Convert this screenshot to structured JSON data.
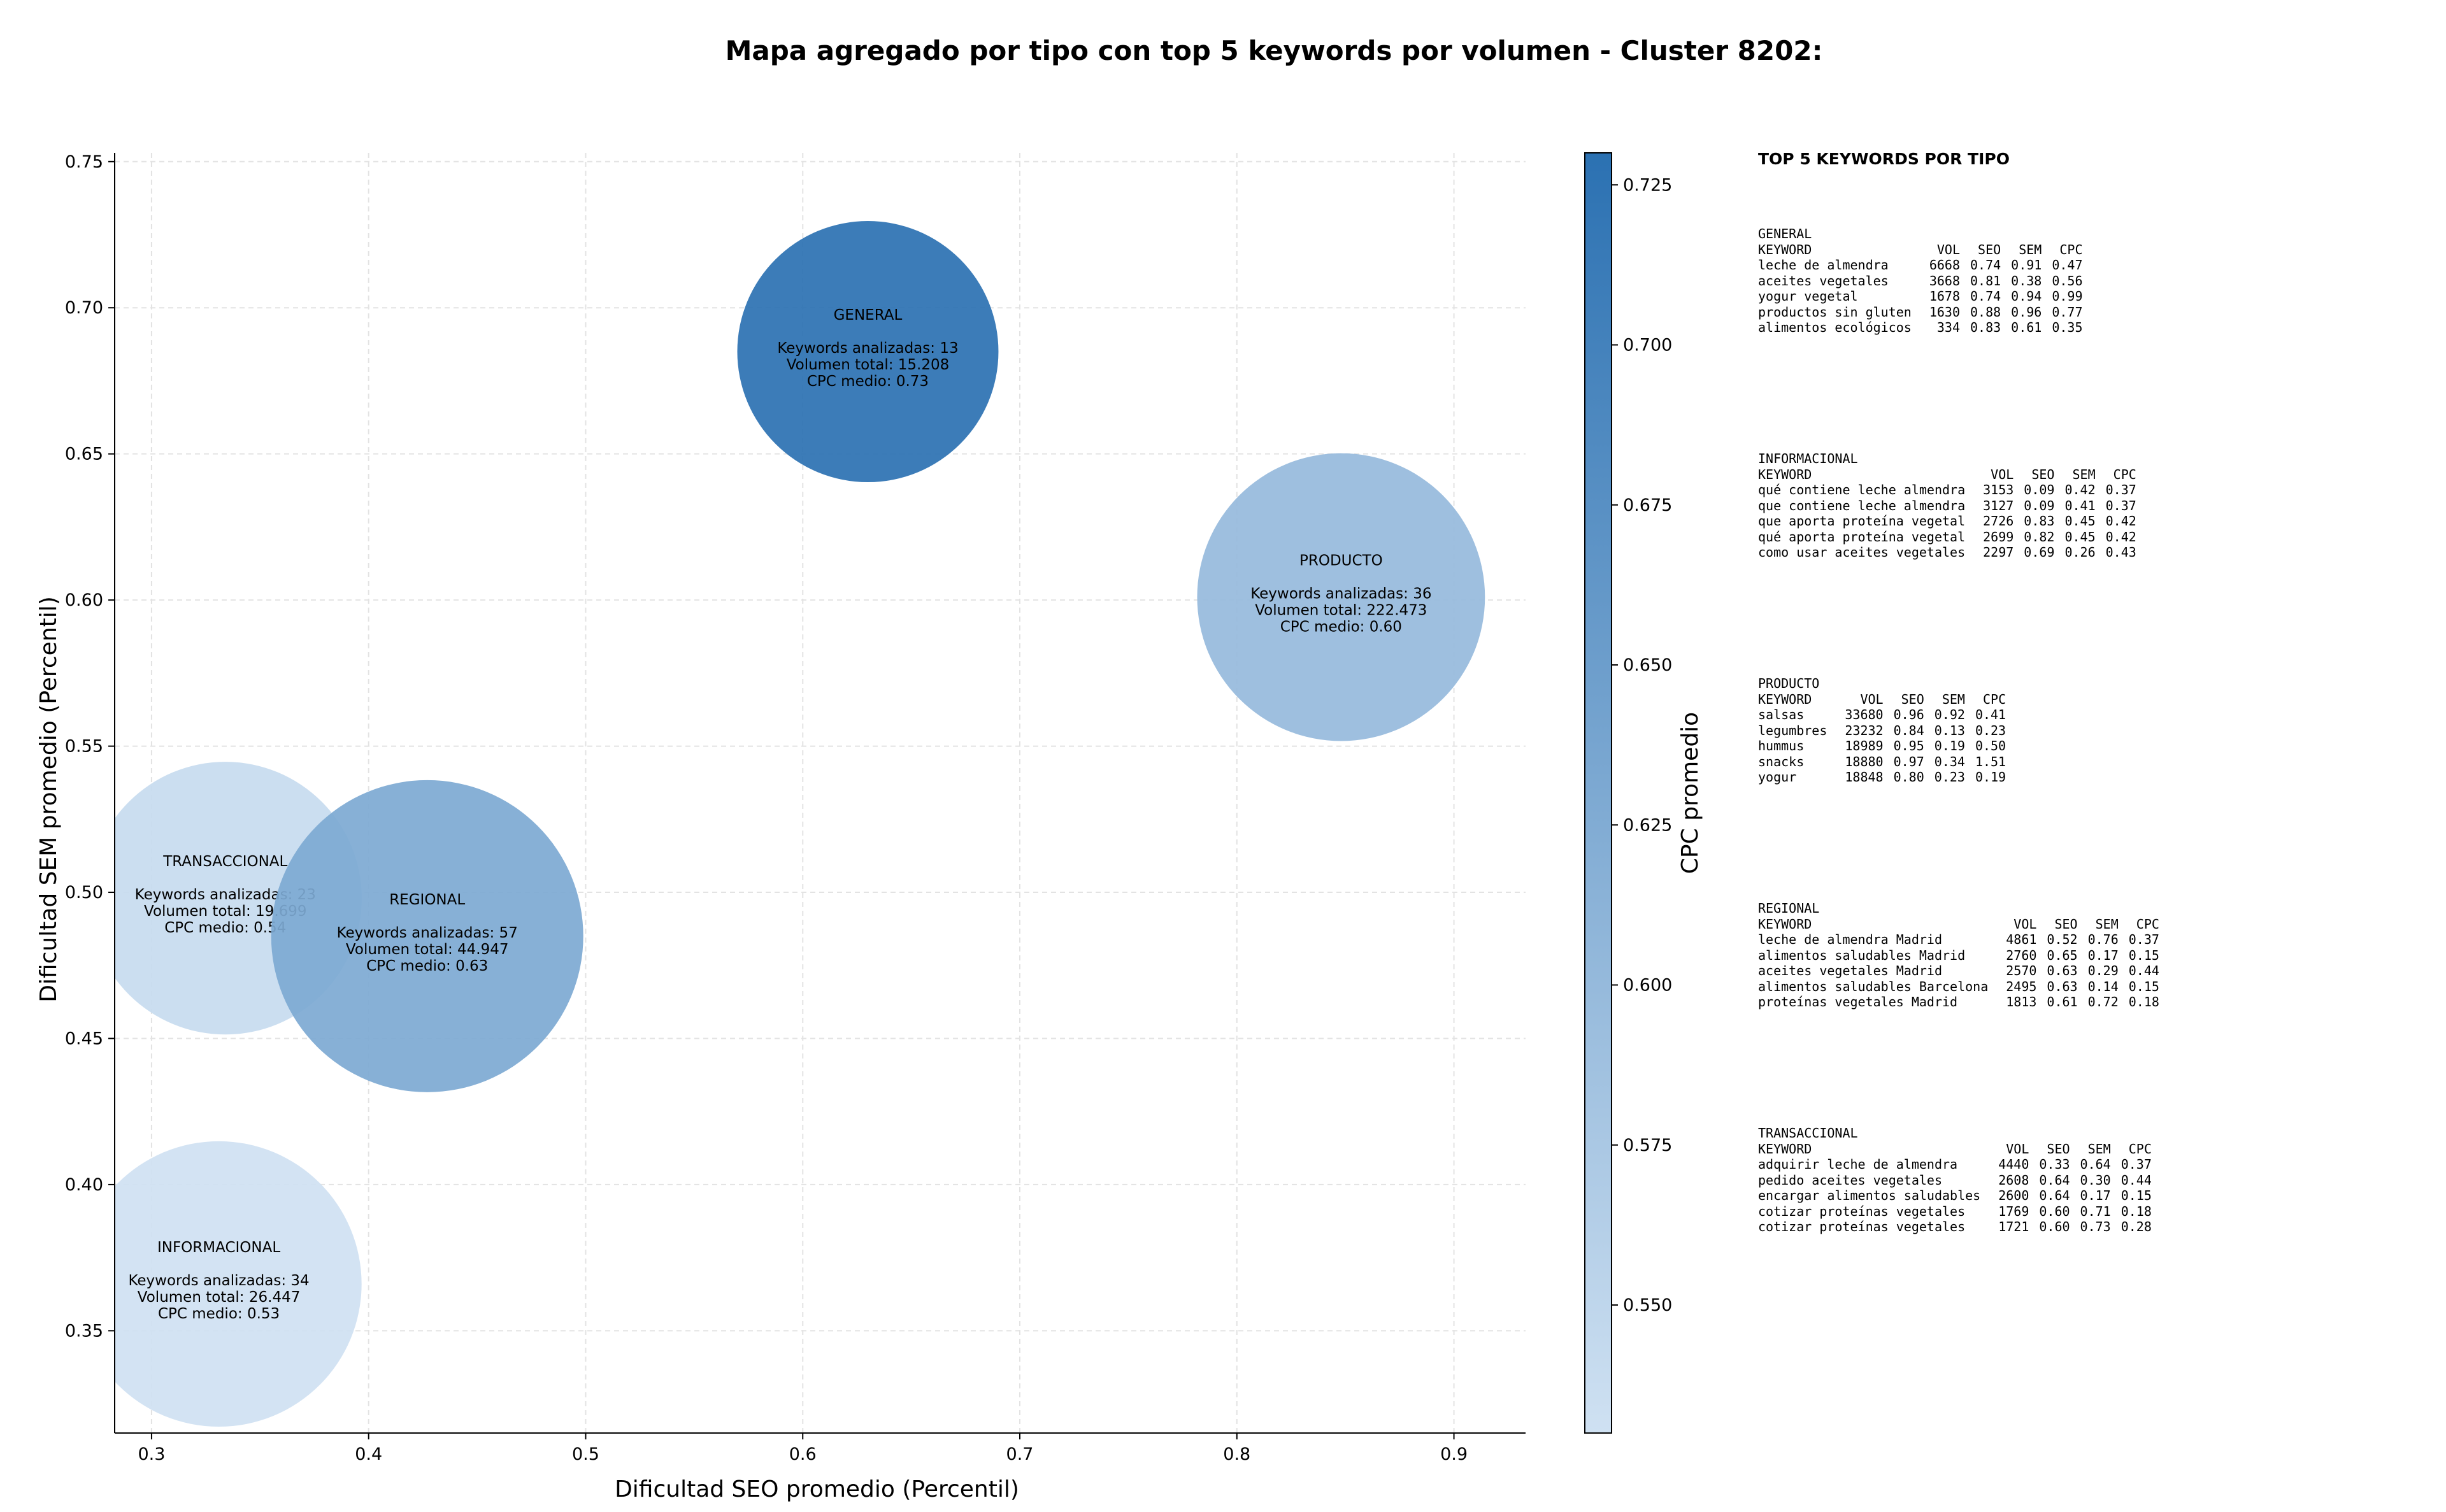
{
  "chart_data": {
    "type": "scatter",
    "title": "Mapa agregado por tipo con top 5 keywords por volumen - Cluster 8202:",
    "xlabel": "Dificultad SEO promedio (Percentil)",
    "ylabel": "Dificultad SEM promedio (Percentil)",
    "xlim": [
      0.283,
      0.933
    ],
    "ylim": [
      0.315,
      0.753
    ],
    "xticks": [
      0.3,
      0.4,
      0.5,
      0.6,
      0.7,
      0.8,
      0.9
    ],
    "yticks": [
      0.35,
      0.4,
      0.45,
      0.5,
      0.55,
      0.6,
      0.65,
      0.7,
      0.75
    ],
    "grid": true,
    "colorbar": {
      "label": "CPC promedio",
      "range": [
        0.53,
        0.73
      ],
      "ticks": [
        0.55,
        0.575,
        0.6,
        0.625,
        0.65,
        0.675,
        0.7,
        0.725
      ],
      "color_low": "#cfe1f2",
      "color_high": "#2b71b2"
    },
    "points": [
      {
        "name": "GENERAL",
        "x": 0.63,
        "y": 0.685,
        "keywords": 13,
        "volume": "15.208",
        "cpc": 0.73,
        "line1": "Keywords analizadas: 13",
        "line2": "Volumen total: 15.208",
        "line3": "CPC medio: 0.73"
      },
      {
        "name": "PRODUCTO",
        "x": 0.848,
        "y": 0.601,
        "keywords": 36,
        "volume": "222.473",
        "cpc": 0.6,
        "line1": "Keywords analizadas: 36",
        "line2": "Volumen total: 222.473",
        "line3": "CPC medio: 0.60"
      },
      {
        "name": "TRANSACCIONAL",
        "x": 0.334,
        "y": 0.498,
        "keywords": 23,
        "volume": "19.699",
        "cpc": 0.54,
        "line1": "Keywords analizadas: 23",
        "line2": "Volumen total: 19.699",
        "line3": "CPC medio: 0.54"
      },
      {
        "name": "REGIONAL",
        "x": 0.427,
        "y": 0.485,
        "keywords": 57,
        "volume": "44.947",
        "cpc": 0.63,
        "line1": "Keywords analizadas: 57",
        "line2": "Volumen total: 44.947",
        "line3": "CPC medio: 0.63"
      },
      {
        "name": "INFORMACIONAL",
        "x": 0.331,
        "y": 0.366,
        "keywords": 34,
        "volume": "26.447",
        "cpc": 0.53,
        "line1": "Keywords analizadas: 34",
        "line2": "Volumen total: 26.447",
        "line3": "CPC medio: 0.53"
      }
    ]
  },
  "keywords_panel": {
    "title": "TOP 5 KEYWORDS POR TIPO",
    "headers": [
      "KEYWORD",
      "VOL",
      "SEO",
      "SEM",
      "CPC"
    ],
    "groups": [
      {
        "name": "GENERAL",
        "rows": [
          [
            "leche de almendra",
            "6668",
            "0.74",
            "0.91",
            "0.47"
          ],
          [
            "aceites vegetales",
            "3668",
            "0.81",
            "0.38",
            "0.56"
          ],
          [
            "yogur vegetal",
            "1678",
            "0.74",
            "0.94",
            "0.99"
          ],
          [
            "productos sin gluten",
            "1630",
            "0.88",
            "0.96",
            "0.77"
          ],
          [
            "alimentos ecológicos",
            "334",
            "0.83",
            "0.61",
            "0.35"
          ]
        ]
      },
      {
        "name": "INFORMACIONAL",
        "rows": [
          [
            "qué contiene leche almendra",
            "3153",
            "0.09",
            "0.42",
            "0.37"
          ],
          [
            "que contiene leche almendra",
            "3127",
            "0.09",
            "0.41",
            "0.37"
          ],
          [
            "que aporta proteína vegetal",
            "2726",
            "0.83",
            "0.45",
            "0.42"
          ],
          [
            "qué aporta proteína vegetal",
            "2699",
            "0.82",
            "0.45",
            "0.42"
          ],
          [
            "como usar aceites vegetales",
            "2297",
            "0.69",
            "0.26",
            "0.43"
          ]
        ]
      },
      {
        "name": "PRODUCTO",
        "rows": [
          [
            "salsas",
            "33680",
            "0.96",
            "0.92",
            "0.41"
          ],
          [
            "legumbres",
            "23232",
            "0.84",
            "0.13",
            "0.23"
          ],
          [
            "hummus",
            "18989",
            "0.95",
            "0.19",
            "0.50"
          ],
          [
            "snacks",
            "18880",
            "0.97",
            "0.34",
            "1.51"
          ],
          [
            "yogur",
            "18848",
            "0.80",
            "0.23",
            "0.19"
          ]
        ]
      },
      {
        "name": "REGIONAL",
        "rows": [
          [
            "leche de almendra Madrid",
            "4861",
            "0.52",
            "0.76",
            "0.37"
          ],
          [
            "alimentos saludables Madrid",
            "2760",
            "0.65",
            "0.17",
            "0.15"
          ],
          [
            "aceites vegetales Madrid",
            "2570",
            "0.63",
            "0.29",
            "0.44"
          ],
          [
            "alimentos saludables Barcelona",
            "2495",
            "0.63",
            "0.14",
            "0.15"
          ],
          [
            "proteínas vegetales Madrid",
            "1813",
            "0.61",
            "0.72",
            "0.18"
          ]
        ]
      },
      {
        "name": "TRANSACCIONAL",
        "rows": [
          [
            "adquirir leche de almendra",
            "4440",
            "0.33",
            "0.64",
            "0.37"
          ],
          [
            "pedido aceites vegetales",
            "2608",
            "0.64",
            "0.30",
            "0.44"
          ],
          [
            "encargar alimentos saludables",
            "2600",
            "0.64",
            "0.17",
            "0.15"
          ],
          [
            "cotizar proteínas vegetales",
            "1769",
            "0.60",
            "0.71",
            "0.18"
          ],
          [
            "cotizar proteínas vegetales",
            "1721",
            "0.60",
            "0.73",
            "0.28"
          ]
        ]
      }
    ]
  }
}
